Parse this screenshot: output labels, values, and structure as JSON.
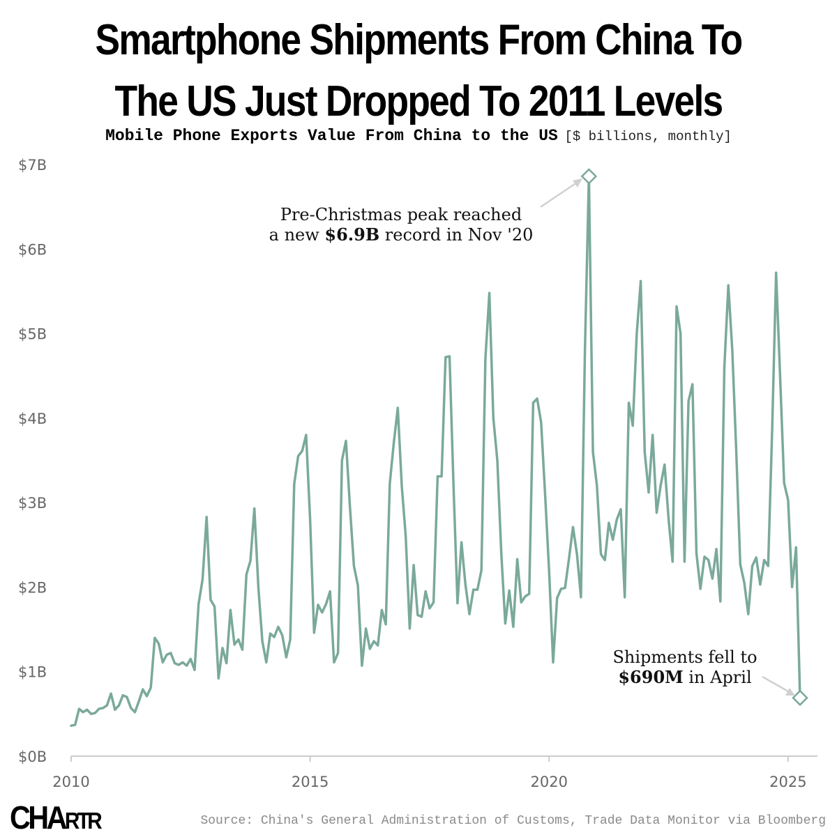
{
  "title_line1": "Smartphone Shipments From China To",
  "title_line2": "The US Just Dropped To 2011 Levels",
  "subtitle_main": "Mobile Phone Exports Value From China to the US",
  "subtitle_unit": "[$ billions, monthly]",
  "annotation_peak": {
    "line1": "Pre-Christmas peak reached",
    "line2_pre": "a new ",
    "line2_bold": "$6.9B",
    "line2_post": " record in Nov '20"
  },
  "annotation_latest": {
    "line1": "Shipments fell to",
    "line2_bold": "$690M",
    "line2_post": " in April"
  },
  "logo_big": "CHA",
  "logo_small": "RTR",
  "source": "Source: China's General Administration of Customs, Trade Data Monitor via Bloomberg",
  "colors": {
    "line": "#7aa99b",
    "axis": "#cccccc",
    "tick_text": "#666666"
  },
  "chart_data": {
    "type": "line",
    "series": [
      {
        "values": [
          0.36,
          0.37,
          0.56,
          0.52,
          0.55,
          0.5,
          0.51,
          0.56,
          0.57,
          0.6,
          0.74,
          0.55,
          0.6,
          0.72,
          0.7,
          0.57,
          0.52,
          0.65,
          0.79,
          0.71,
          0.81,
          1.4,
          1.33,
          1.11,
          1.2,
          1.22,
          1.1,
          1.08,
          1.11,
          1.07,
          1.15,
          1.02,
          1.8,
          2.09,
          2.83,
          1.85,
          1.77,
          0.92,
          1.28,
          1.1,
          1.73,
          1.32,
          1.38,
          1.26,
          2.15,
          2.31,
          2.93,
          2.0,
          1.36,
          1.11,
          1.45,
          1.41,
          1.53,
          1.43,
          1.17,
          1.38,
          3.22,
          3.55,
          3.61,
          3.8,
          2.8,
          1.46,
          1.79,
          1.7,
          1.8,
          1.95,
          1.11,
          1.22,
          3.5,
          3.73,
          2.95,
          2.25,
          2.02,
          1.07,
          1.51,
          1.27,
          1.36,
          1.31,
          1.73,
          1.56,
          3.22,
          3.7,
          4.12,
          3.2,
          2.6,
          1.51,
          2.26,
          1.67,
          1.65,
          1.95,
          1.75,
          1.82,
          3.31,
          3.31,
          4.72,
          4.73,
          3.2,
          1.81,
          2.53,
          2.03,
          1.68,
          1.97,
          1.97,
          2.2,
          4.7,
          5.48,
          4.0,
          3.5,
          2.4,
          1.57,
          1.96,
          1.53,
          2.33,
          1.82,
          1.89,
          1.92,
          4.18,
          4.23,
          3.95,
          3.1,
          2.2,
          1.11,
          1.87,
          1.98,
          1.99,
          2.34,
          2.71,
          2.39,
          1.88,
          4.8,
          6.86,
          3.6,
          3.2,
          2.39,
          2.32,
          2.76,
          2.56,
          2.8,
          2.92,
          1.88,
          4.18,
          3.91,
          5.0,
          5.62,
          3.6,
          3.12,
          3.8,
          2.88,
          3.2,
          3.45,
          2.8,
          2.3,
          5.32,
          5.0,
          2.3,
          4.2,
          4.4,
          2.4,
          1.98,
          2.36,
          2.32,
          2.1,
          2.45,
          1.83,
          4.6,
          5.57,
          4.8,
          3.6,
          2.27,
          2.05,
          1.68,
          2.25,
          2.35,
          2.03,
          2.32,
          2.25,
          3.85,
          5.72,
          4.5,
          3.23,
          3.03,
          2.0,
          2.47,
          0.69
        ]
      }
    ],
    "x_start": "2010-01",
    "x_end": "2025-04",
    "frequency": "monthly",
    "x_ticks": [
      "2010",
      "2015",
      "2020",
      "2025"
    ],
    "y_ticks": [
      "$0B",
      "$1B",
      "$2B",
      "$3B",
      "$4B",
      "$5B",
      "$6B",
      "$7B"
    ],
    "ylim": [
      0,
      7
    ],
    "grid": false,
    "highlighted_points": [
      {
        "date": "2020-11",
        "value": 6.86
      },
      {
        "date": "2025-04",
        "value": 0.69
      }
    ]
  }
}
